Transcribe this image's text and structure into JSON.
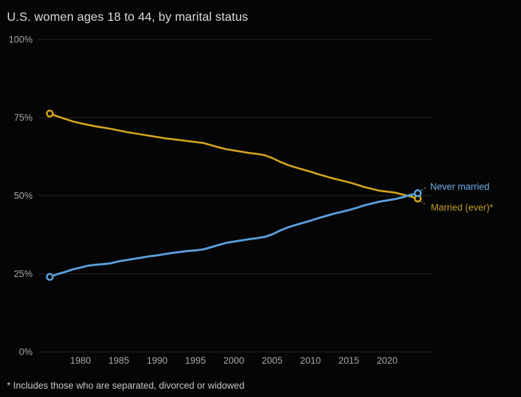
{
  "chart_data": {
    "type": "line",
    "title": "U.S. women ages 18 to 44, by marital status",
    "footnote": "* Includes those who are separated, divorced or widowed",
    "xlim": [
      1976,
      2024
    ],
    "ylim": [
      0,
      100
    ],
    "grid": true,
    "legend_position": "end-of-line-labels-right",
    "x": [
      1976,
      1977,
      1978,
      1979,
      1980,
      1981,
      1982,
      1983,
      1984,
      1985,
      1986,
      1987,
      1988,
      1989,
      1990,
      1991,
      1992,
      1993,
      1994,
      1995,
      1996,
      1997,
      1998,
      1999,
      2000,
      2001,
      2002,
      2003,
      2004,
      2005,
      2006,
      2007,
      2008,
      2009,
      2010,
      2011,
      2012,
      2013,
      2014,
      2015,
      2016,
      2017,
      2018,
      2019,
      2020,
      2021,
      2022,
      2023,
      2024
    ],
    "series": [
      {
        "name": "Never married",
        "color": "#5b9fdd",
        "label_color": "#6fb0e8",
        "values": [
          24.0,
          24.9,
          25.6,
          26.4,
          27.0,
          27.6,
          27.9,
          28.1,
          28.4,
          29.0,
          29.4,
          29.8,
          30.2,
          30.6,
          30.9,
          31.3,
          31.7,
          32.0,
          32.3,
          32.5,
          32.8,
          33.5,
          34.2,
          34.9,
          35.3,
          35.7,
          36.1,
          36.4,
          36.8,
          37.6,
          38.8,
          39.8,
          40.6,
          41.3,
          42.0,
          42.8,
          43.5,
          44.2,
          44.8,
          45.4,
          46.1,
          46.9,
          47.5,
          48.1,
          48.5,
          48.9,
          49.5,
          50.2,
          50.8
        ]
      },
      {
        "name": "Married (ever)*",
        "color": "#d3a41b",
        "label_color": "#c19c29",
        "values": [
          76.3,
          75.4,
          74.6,
          73.8,
          73.2,
          72.7,
          72.2,
          71.8,
          71.4,
          70.9,
          70.4,
          70.0,
          69.6,
          69.2,
          68.8,
          68.4,
          68.1,
          67.8,
          67.5,
          67.2,
          66.9,
          66.2,
          65.5,
          64.9,
          64.5,
          64.1,
          63.7,
          63.4,
          63.0,
          62.1,
          60.9,
          59.9,
          59.1,
          58.4,
          57.7,
          56.9,
          56.2,
          55.5,
          54.9,
          54.3,
          53.6,
          52.8,
          52.2,
          51.6,
          51.3,
          51.0,
          50.4,
          49.8,
          49.1
        ]
      }
    ],
    "y_ticks": [
      {
        "value": 100,
        "label": "100%"
      },
      {
        "value": 75,
        "label": "75%"
      },
      {
        "value": 50,
        "label": "50%"
      },
      {
        "value": 25,
        "label": "25%"
      },
      {
        "value": 0,
        "label": "0%"
      }
    ],
    "x_ticks": [
      {
        "value": 1980,
        "label": "1980"
      },
      {
        "value": 1985,
        "label": "1985"
      },
      {
        "value": 1990,
        "label": "1990"
      },
      {
        "value": 1995,
        "label": "1995"
      },
      {
        "value": 2000,
        "label": "2000"
      },
      {
        "value": 2005,
        "label": "2005"
      },
      {
        "value": 2010,
        "label": "2010"
      },
      {
        "value": 2015,
        "label": "2015"
      },
      {
        "value": 2020,
        "label": "2020"
      }
    ],
    "colors": {
      "background": "#050505",
      "grid": "#262626",
      "axis_text": "#a9a9a9",
      "title_text": "#dadada",
      "footnote_text": "#c6c6c6",
      "leader_blue": "#7ea9cc",
      "leader_gold": "#8d7a2a"
    }
  }
}
